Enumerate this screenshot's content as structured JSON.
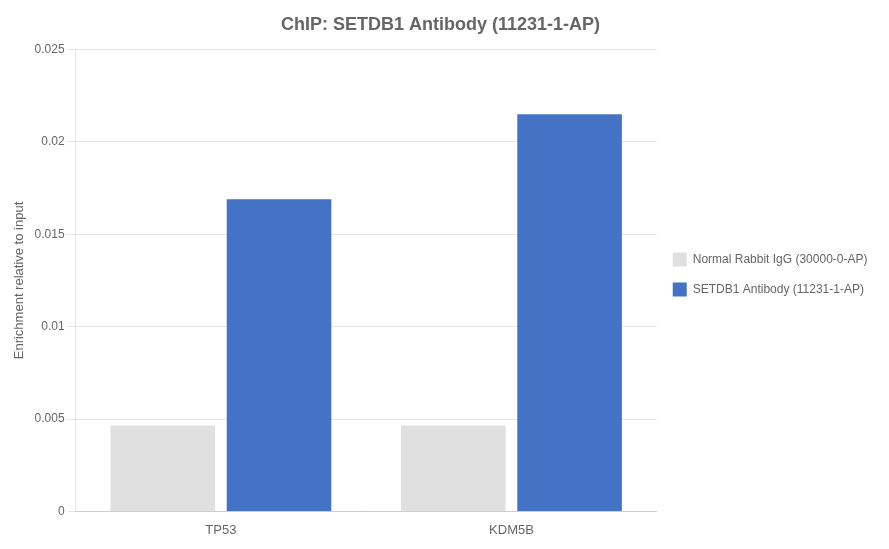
{
  "chart_data": {
    "type": "bar",
    "title": "ChIP: SETDB1 Antibody (11231-1-AP)",
    "categories": [
      "TP53",
      "KDM5B"
    ],
    "series": [
      {
        "name": "Normal Rabbit IgG (30000-0-AP)",
        "color": "#e0e0e0",
        "values": [
          0.00465,
          0.00465
        ]
      },
      {
        "name": "SETDB1 Antibody (11231-1-AP)",
        "color": "#4472c4",
        "values": [
          0.0169,
          0.0215
        ]
      }
    ],
    "ylabel": "Enrichment relative to input",
    "ylim": [
      0,
      0.025
    ],
    "yticks": [
      0,
      0.005,
      0.01,
      0.015,
      0.02,
      0.025
    ],
    "grid": true,
    "legend": "right"
  }
}
